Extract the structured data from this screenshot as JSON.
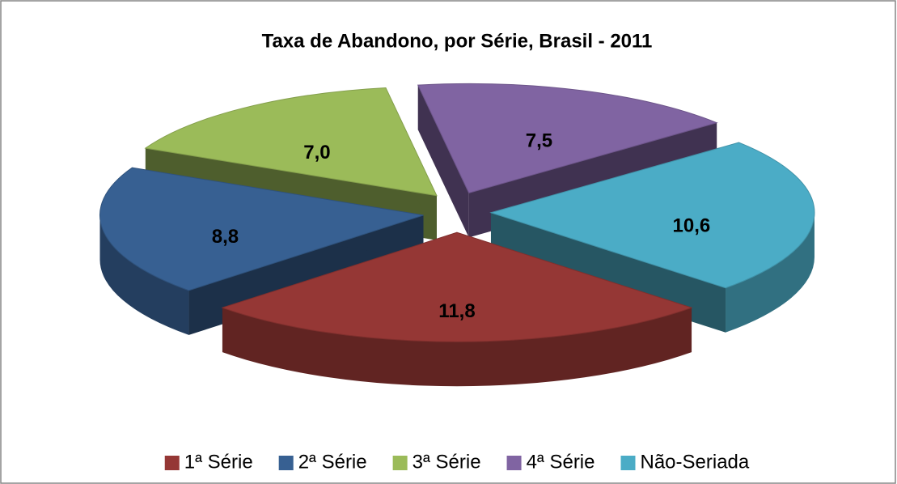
{
  "chart_data": {
    "type": "pie3d",
    "title": "Taxa de Abandono, por Série, Brasil - 2011",
    "categories": [
      "1ª Série",
      "2ª Série",
      "3ª Série",
      "4ª Série",
      "Não-Seriada"
    ],
    "values": [
      11.8,
      8.8,
      7.0,
      7.5,
      10.6
    ],
    "value_labels": [
      "11,8",
      "8,8",
      "7,0",
      "7,5",
      "10,6"
    ],
    "colors": [
      "#953735",
      "#376092",
      "#9bbb59",
      "#8064a2",
      "#4bacc6"
    ],
    "legend": "bottom"
  }
}
